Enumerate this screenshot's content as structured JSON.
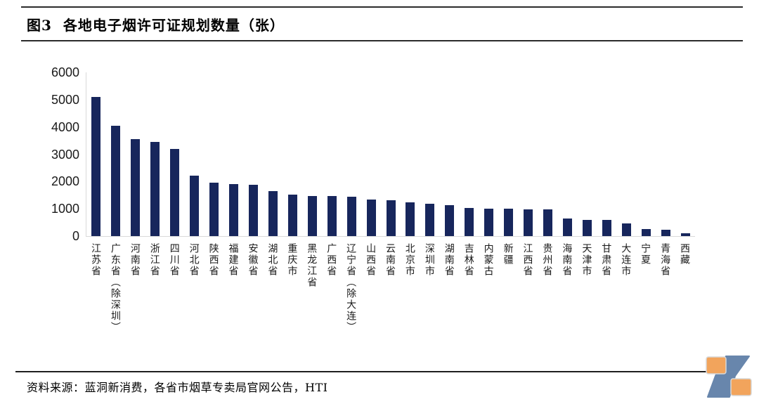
{
  "figure": {
    "title": "图3  各地电子烟许可证规划数量（张）",
    "source_note": "资料来源：蓝洞新消费，各省市烟草专卖局官网公告，HTI"
  },
  "chart_data": {
    "type": "bar",
    "title": "各地电子烟许可证规划数量（张）",
    "categories": [
      "江苏省",
      "广东省（除深圳）",
      "河南省",
      "浙江省",
      "四川省",
      "河北省",
      "陕西省",
      "福建省",
      "安徽省",
      "湖北省",
      "重庆市",
      "黑龙江省",
      "广西省",
      "辽宁省（除大连）",
      "山西省",
      "云南省",
      "北京市",
      "深圳市",
      "湖南省",
      "吉林省",
      "内蒙古",
      "新疆",
      "江西省",
      "贵州省",
      "海南省",
      "天津市",
      "甘肃省",
      "大连市",
      "宁夏",
      "青海省",
      "西藏"
    ],
    "values": [
      5100,
      4050,
      3550,
      3450,
      3200,
      2220,
      1970,
      1910,
      1890,
      1650,
      1520,
      1480,
      1470,
      1440,
      1350,
      1310,
      1230,
      1190,
      1140,
      1040,
      1010,
      1000,
      990,
      990,
      640,
      580,
      580,
      460,
      270,
      220,
      110
    ],
    "xlabel": "",
    "ylabel": "",
    "ylim": [
      0,
      6000
    ],
    "yticks": [
      0,
      1000,
      2000,
      3000,
      4000,
      5000,
      6000
    ],
    "grid": false,
    "legend": null,
    "bar_color": "#17265c",
    "axis_color": "#d9d9d9"
  },
  "logo": {
    "name": "hti-logo",
    "colors": {
      "orange": "#f2a45c",
      "blue": "#6886ac",
      "edge": "#d8d8d8"
    }
  }
}
